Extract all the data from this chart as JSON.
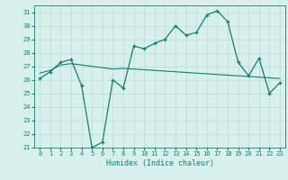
{
  "xlabel": "Humidex (Indice chaleur)",
  "xlim": [
    -0.5,
    23.5
  ],
  "ylim": [
    21,
    31.5
  ],
  "yticks": [
    21,
    22,
    23,
    24,
    25,
    26,
    27,
    28,
    29,
    30,
    31
  ],
  "xticks": [
    0,
    1,
    2,
    3,
    4,
    5,
    6,
    7,
    8,
    9,
    10,
    11,
    12,
    13,
    14,
    15,
    16,
    17,
    18,
    19,
    20,
    21,
    22,
    23
  ],
  "line_color": "#1a7a6e",
  "bg_color": "#d8f0ec",
  "grid_color": "#b8ddd6",
  "series1": [
    26.1,
    26.6,
    27.3,
    27.5,
    25.6,
    21.0,
    21.4,
    26.0,
    25.4,
    28.5,
    28.3,
    28.7,
    29.0,
    30.0,
    29.3,
    29.5,
    30.8,
    31.1,
    30.3,
    27.3,
    26.3,
    27.6,
    25.0,
    25.8
  ],
  "series2": [
    26.5,
    26.7,
    27.1,
    27.2,
    27.1,
    27.0,
    26.9,
    26.8,
    26.85,
    26.8,
    26.75,
    26.7,
    26.65,
    26.6,
    26.55,
    26.5,
    26.45,
    26.4,
    26.35,
    26.3,
    26.25,
    26.2,
    26.15,
    26.1
  ]
}
